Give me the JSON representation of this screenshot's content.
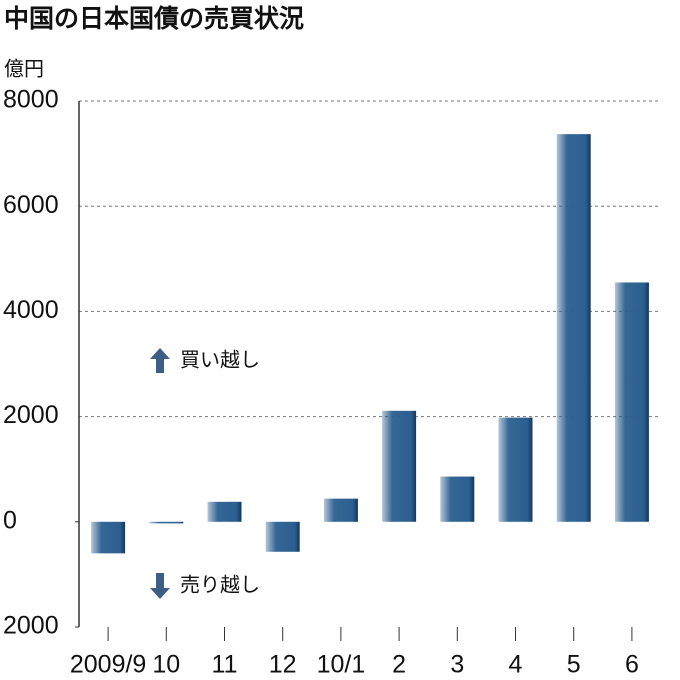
{
  "chart_data": {
    "type": "bar",
    "title": "中国の日本国債の売買状況",
    "unit": "億円",
    "categories": [
      "2009/9",
      "10",
      "11",
      "12",
      "10/1",
      "2",
      "3",
      "4",
      "5",
      "6"
    ],
    "values": [
      -600,
      -30,
      380,
      -570,
      440,
      2110,
      860,
      1980,
      7370,
      4550
    ],
    "color": "#2b5f90",
    "ylim": [
      -2000,
      8000
    ],
    "yticks": [
      {
        "value": -2000,
        "label": "2000"
      },
      0,
      2000,
      4000,
      6000,
      8000
    ],
    "grid": true,
    "annotations": [
      "買い越し",
      "売り越し"
    ]
  }
}
